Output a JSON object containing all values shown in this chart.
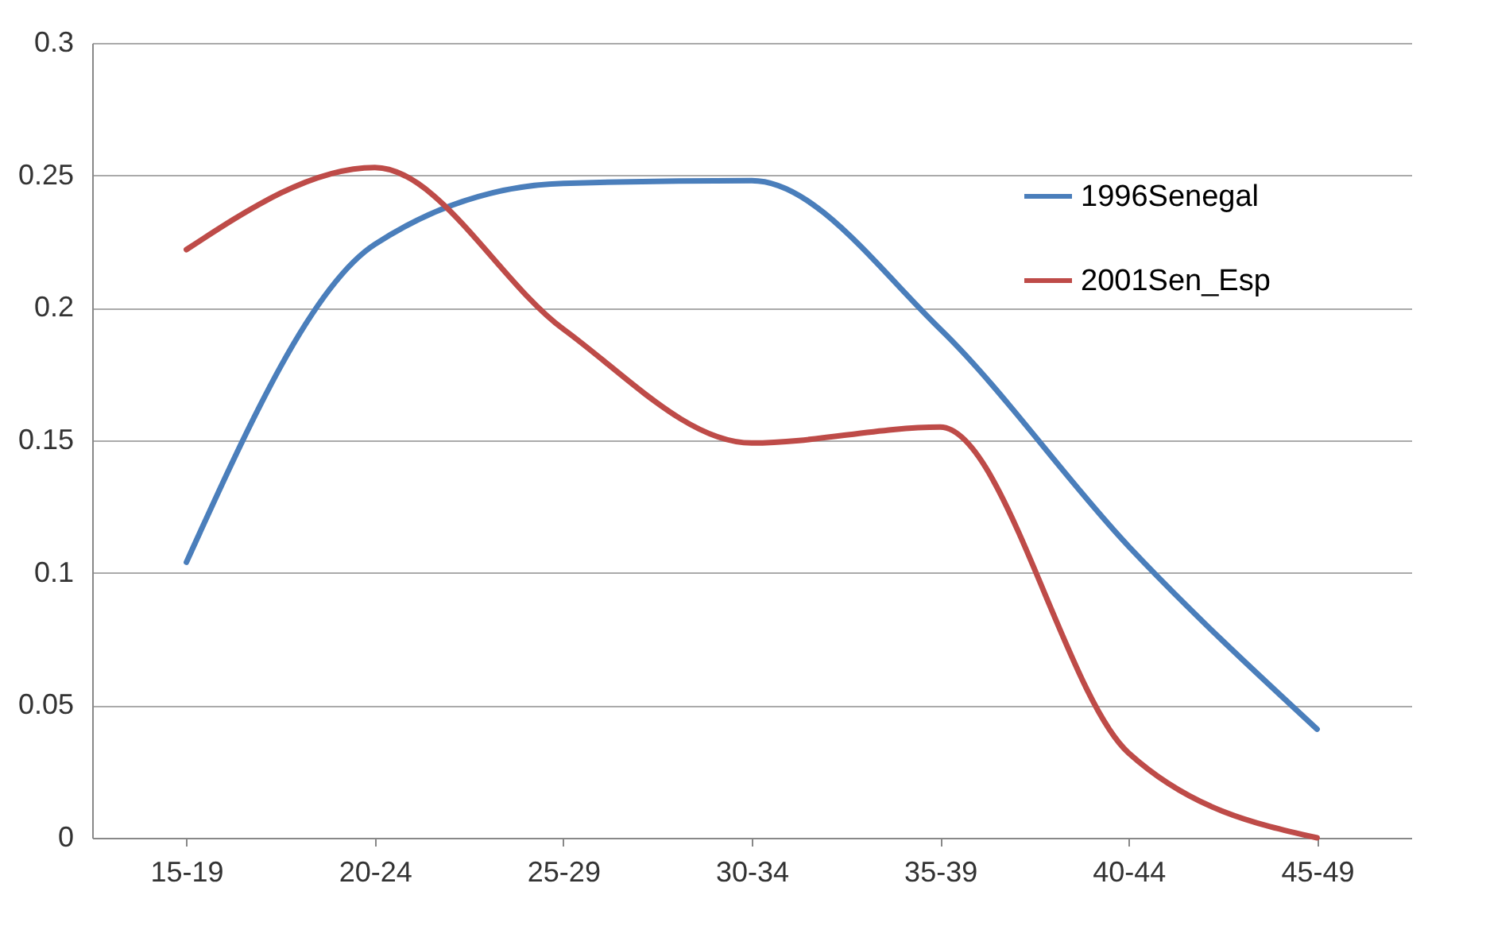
{
  "chart_data": {
    "type": "line",
    "categories": [
      "15-19",
      "20-24",
      "25-29",
      "30-34",
      "35-39",
      "40-44",
      "45-49"
    ],
    "series": [
      {
        "name": "1996Senegal",
        "color": "#4a7ebb",
        "values": [
          0.104,
          0.224,
          0.247,
          0.248,
          0.192,
          0.11,
          0.041
        ]
      },
      {
        "name": "2001Sen_Esp",
        "color": "#be4b48",
        "values": [
          0.222,
          0.253,
          0.192,
          0.149,
          0.155,
          0.032,
          0
        ]
      }
    ],
    "ylim": [
      0,
      0.3
    ],
    "yticks": [
      0,
      0.05,
      0.1,
      0.15,
      0.2,
      0.25,
      0.3
    ],
    "grid": "y",
    "legend": "top right",
    "marker": "none",
    "line_style": "solid"
  }
}
